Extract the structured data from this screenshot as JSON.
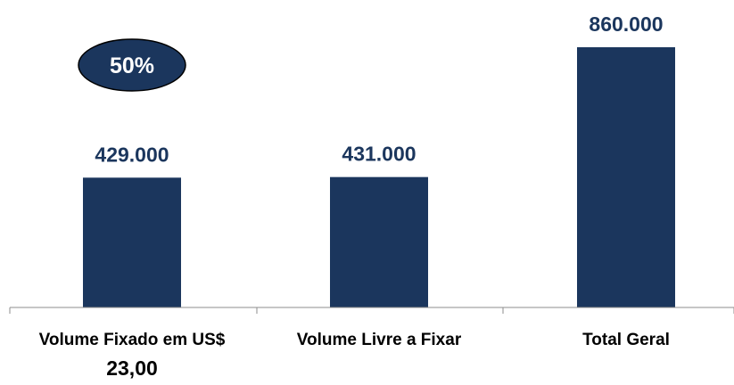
{
  "chart_data": {
    "type": "bar",
    "categories": [
      "Volume Fixado em US$",
      "Volume Livre a Fixar",
      "Total Geral"
    ],
    "values": [
      429000,
      431000,
      860000
    ],
    "data_labels": [
      "429.000",
      "431.000",
      "860.000"
    ],
    "ylim": [
      0,
      900000
    ],
    "grid": false,
    "legend": "none",
    "bar_color": "#1b365d"
  },
  "badge": {
    "text": "50%"
  },
  "note": {
    "text": "23,00"
  }
}
